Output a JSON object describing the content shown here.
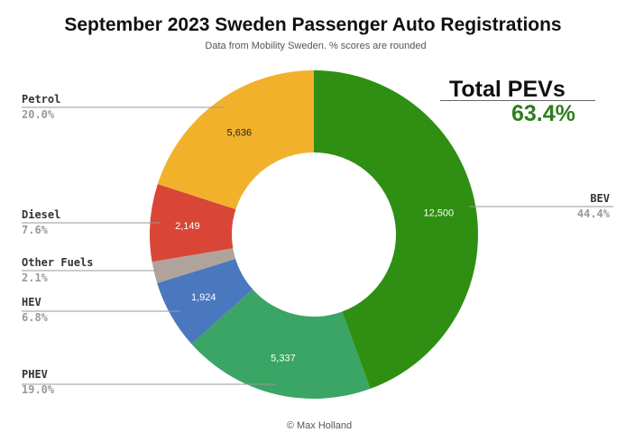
{
  "title": "September 2023 Sweden Passenger Auto Registrations",
  "subtitle": "Data from Mobility Sweden. % scores are rounded",
  "footer": "© Max Holland",
  "total": {
    "label": "Total PEVs",
    "value": "63.4%",
    "color": "#2e7d1f"
  },
  "chart_data": {
    "type": "pie",
    "donut": true,
    "title": "September 2023 Sweden Passenger Auto Registrations",
    "subtitle": "Data from Mobility Sweden. % scores are rounded",
    "slices": [
      {
        "name": "BEV",
        "value": 12500,
        "label": "12,500",
        "percent": "44.4%",
        "color": "#2e8f12"
      },
      {
        "name": "PHEV",
        "value": 5337,
        "label": "5,337",
        "percent": "19.0%",
        "color": "#3aa564"
      },
      {
        "name": "HEV",
        "value": 1924,
        "label": "1,924",
        "percent": "6.8%",
        "color": "#4a78be"
      },
      {
        "name": "Other Fuels",
        "value": 597,
        "label": "",
        "percent": "2.1%",
        "color": "#b0a39c"
      },
      {
        "name": "Diesel",
        "value": 2149,
        "label": "2,149",
        "percent": "7.6%",
        "color": "#d94638"
      },
      {
        "name": "Petrol",
        "value": 5636,
        "label": "5,636",
        "percent": "20.0%",
        "color": "#f2b12a"
      }
    ]
  }
}
